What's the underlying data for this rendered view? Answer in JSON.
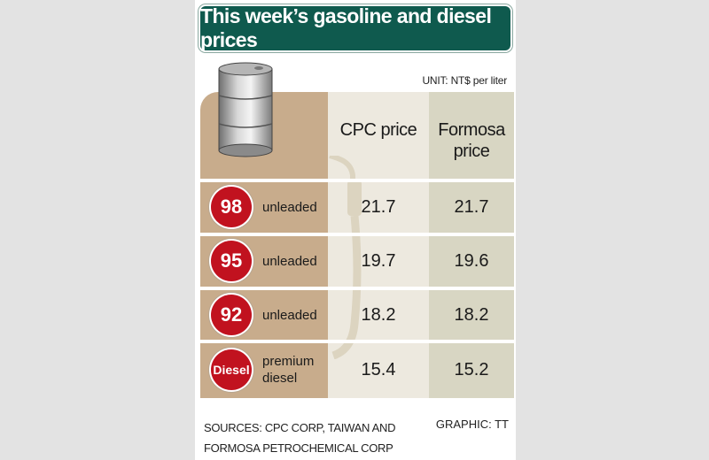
{
  "title": "This week’s gasoline and diesel prices",
  "unit": "UNIT: NT$ per liter",
  "columns": {
    "cpc": "CPC price",
    "formosa": "Formosa price"
  },
  "rows": [
    {
      "badge": "98",
      "label": "unleaded",
      "cpc": "21.7",
      "formosa": "21.7"
    },
    {
      "badge": "95",
      "label": "unleaded",
      "cpc": "19.7",
      "formosa": "19.6"
    },
    {
      "badge": "92",
      "label": "unleaded",
      "cpc": "18.2",
      "formosa": "18.2"
    },
    {
      "badge": "Diesel",
      "label": "premium diesel",
      "cpc": "15.4",
      "formosa": "15.2"
    }
  ],
  "sources": "SOURCES: CPC CORP, TAIWAN AND FORMOSA PETROCHEMICAL CORP",
  "credit": "GRAPHIC: TT",
  "colors": {
    "title_bg": "#0f5a4e",
    "badge_red": "#c1121f",
    "tan": "#c8ac8c",
    "cpc_col": "#ede9df",
    "formosa_col": "#d8d6c3"
  },
  "icons": [
    "oil-barrel-icon",
    "fuel-pump-icon"
  ],
  "chart_data": {
    "type": "table",
    "title": "This week’s gasoline and diesel prices",
    "unit": "NT$ per liter",
    "columns": [
      "CPC price",
      "Formosa price"
    ],
    "rows": [
      "98 unleaded",
      "95 unleaded",
      "92 unleaded",
      "Diesel premium diesel"
    ],
    "series": [
      {
        "name": "CPC price",
        "values": [
          21.7,
          19.7,
          18.2,
          15.4
        ]
      },
      {
        "name": "Formosa price",
        "values": [
          21.7,
          19.6,
          18.2,
          15.2
        ]
      }
    ]
  }
}
